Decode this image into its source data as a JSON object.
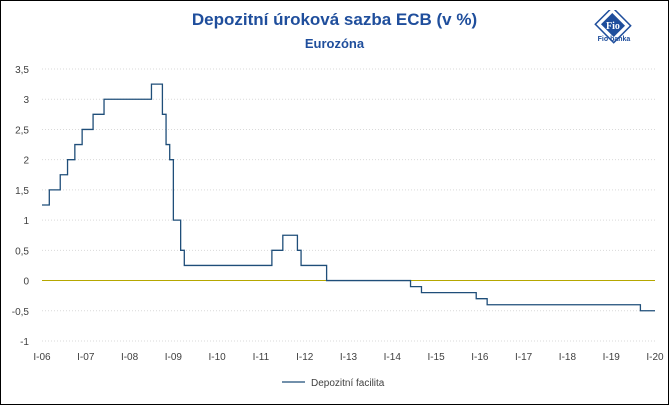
{
  "chart_data": {
    "type": "line",
    "title": "Depozitní úroková sazba ECB (v %)",
    "subtitle": "Eurozóna",
    "ylim": [
      -1,
      3.5
    ],
    "y_ticks": [
      "3,5",
      "3",
      "2,5",
      "2",
      "1,5",
      "1",
      "0,5",
      "0",
      "-0,5",
      "-1"
    ],
    "y_tick_values": [
      3.5,
      3,
      2.5,
      2,
      1.5,
      1,
      0.5,
      0,
      -0.5,
      -1
    ],
    "x_ticks": [
      "I-06",
      "I-07",
      "I-08",
      "I-09",
      "I-10",
      "I-11",
      "I-12",
      "I-13",
      "I-14",
      "I-15",
      "I-16",
      "I-17",
      "I-18",
      "I-19",
      "I-20"
    ],
    "xlim": [
      "2006-01",
      "2020-01"
    ],
    "grid": true,
    "zero_line_color": "#b5a700",
    "legend_position": "bottom",
    "series": [
      {
        "name": "Depozitní facilita",
        "color": "#1f4e79",
        "points": [
          [
            "2006-01",
            1.25
          ],
          [
            "2006-03",
            1.5
          ],
          [
            "2006-06",
            1.75
          ],
          [
            "2006-08",
            2.0
          ],
          [
            "2006-10",
            2.25
          ],
          [
            "2006-12",
            2.5
          ],
          [
            "2007-03",
            2.75
          ],
          [
            "2007-06",
            3.0
          ],
          [
            "2008-07",
            3.25
          ],
          [
            "2008-10",
            2.75
          ],
          [
            "2008-11",
            2.25
          ],
          [
            "2008-12",
            2.0
          ],
          [
            "2009-01",
            1.0
          ],
          [
            "2009-03",
            0.5
          ],
          [
            "2009-04",
            0.25
          ],
          [
            "2011-04",
            0.5
          ],
          [
            "2011-07",
            0.75
          ],
          [
            "2011-11",
            0.5
          ],
          [
            "2011-12",
            0.25
          ],
          [
            "2012-07",
            0.0
          ],
          [
            "2014-06",
            -0.1
          ],
          [
            "2014-09",
            -0.2
          ],
          [
            "2015-12",
            -0.3
          ],
          [
            "2016-03",
            -0.4
          ],
          [
            "2019-09",
            -0.5
          ],
          [
            "2020-01",
            -0.5
          ]
        ]
      }
    ]
  },
  "logo": {
    "label": "Fio banka",
    "mark": "Fio"
  }
}
